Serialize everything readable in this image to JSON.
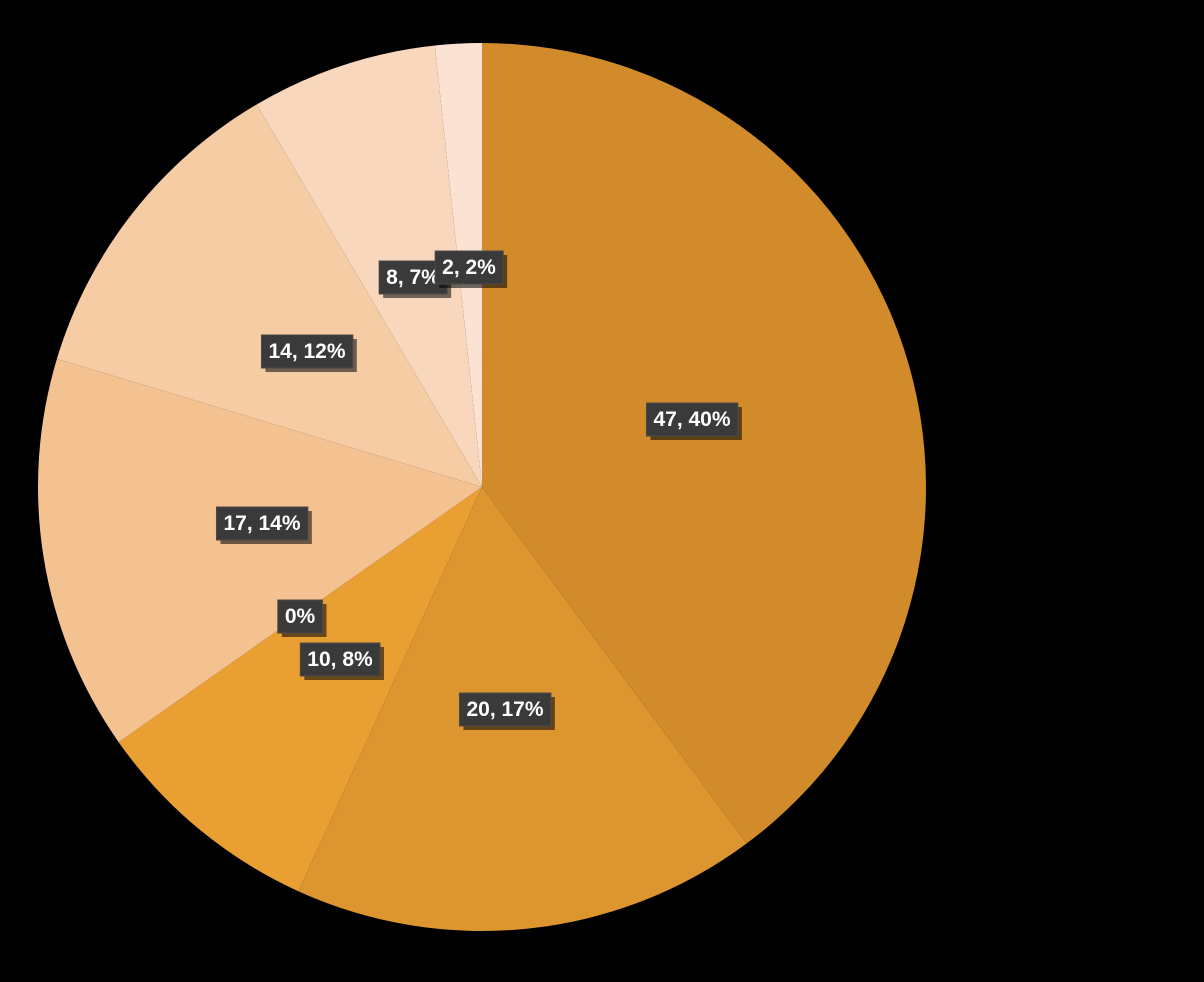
{
  "chart_data": {
    "type": "pie",
    "start": "12 o'clock",
    "direction": "clockwise",
    "legend": "none",
    "slices": [
      {
        "value": 47,
        "label": "47, 40%",
        "color": "#D18B2A"
      },
      {
        "value": 20,
        "label": "20, 17%",
        "color": "#DC952F"
      },
      {
        "value": 10,
        "label": "10, 8%",
        "color": "#EA9F32"
      },
      {
        "value": 0,
        "label": "0%",
        "color": "#EA9F32"
      },
      {
        "value": 17,
        "label": "17, 14%",
        "color": "#F4C191"
      },
      {
        "value": 14,
        "label": "14, 12%",
        "color": "#F6CCA5"
      },
      {
        "value": 8,
        "label": "8, 7%",
        "color": "#F8D7BC"
      },
      {
        "value": 2,
        "label": "2, 2%",
        "color": "#FBE2D2"
      }
    ]
  }
}
